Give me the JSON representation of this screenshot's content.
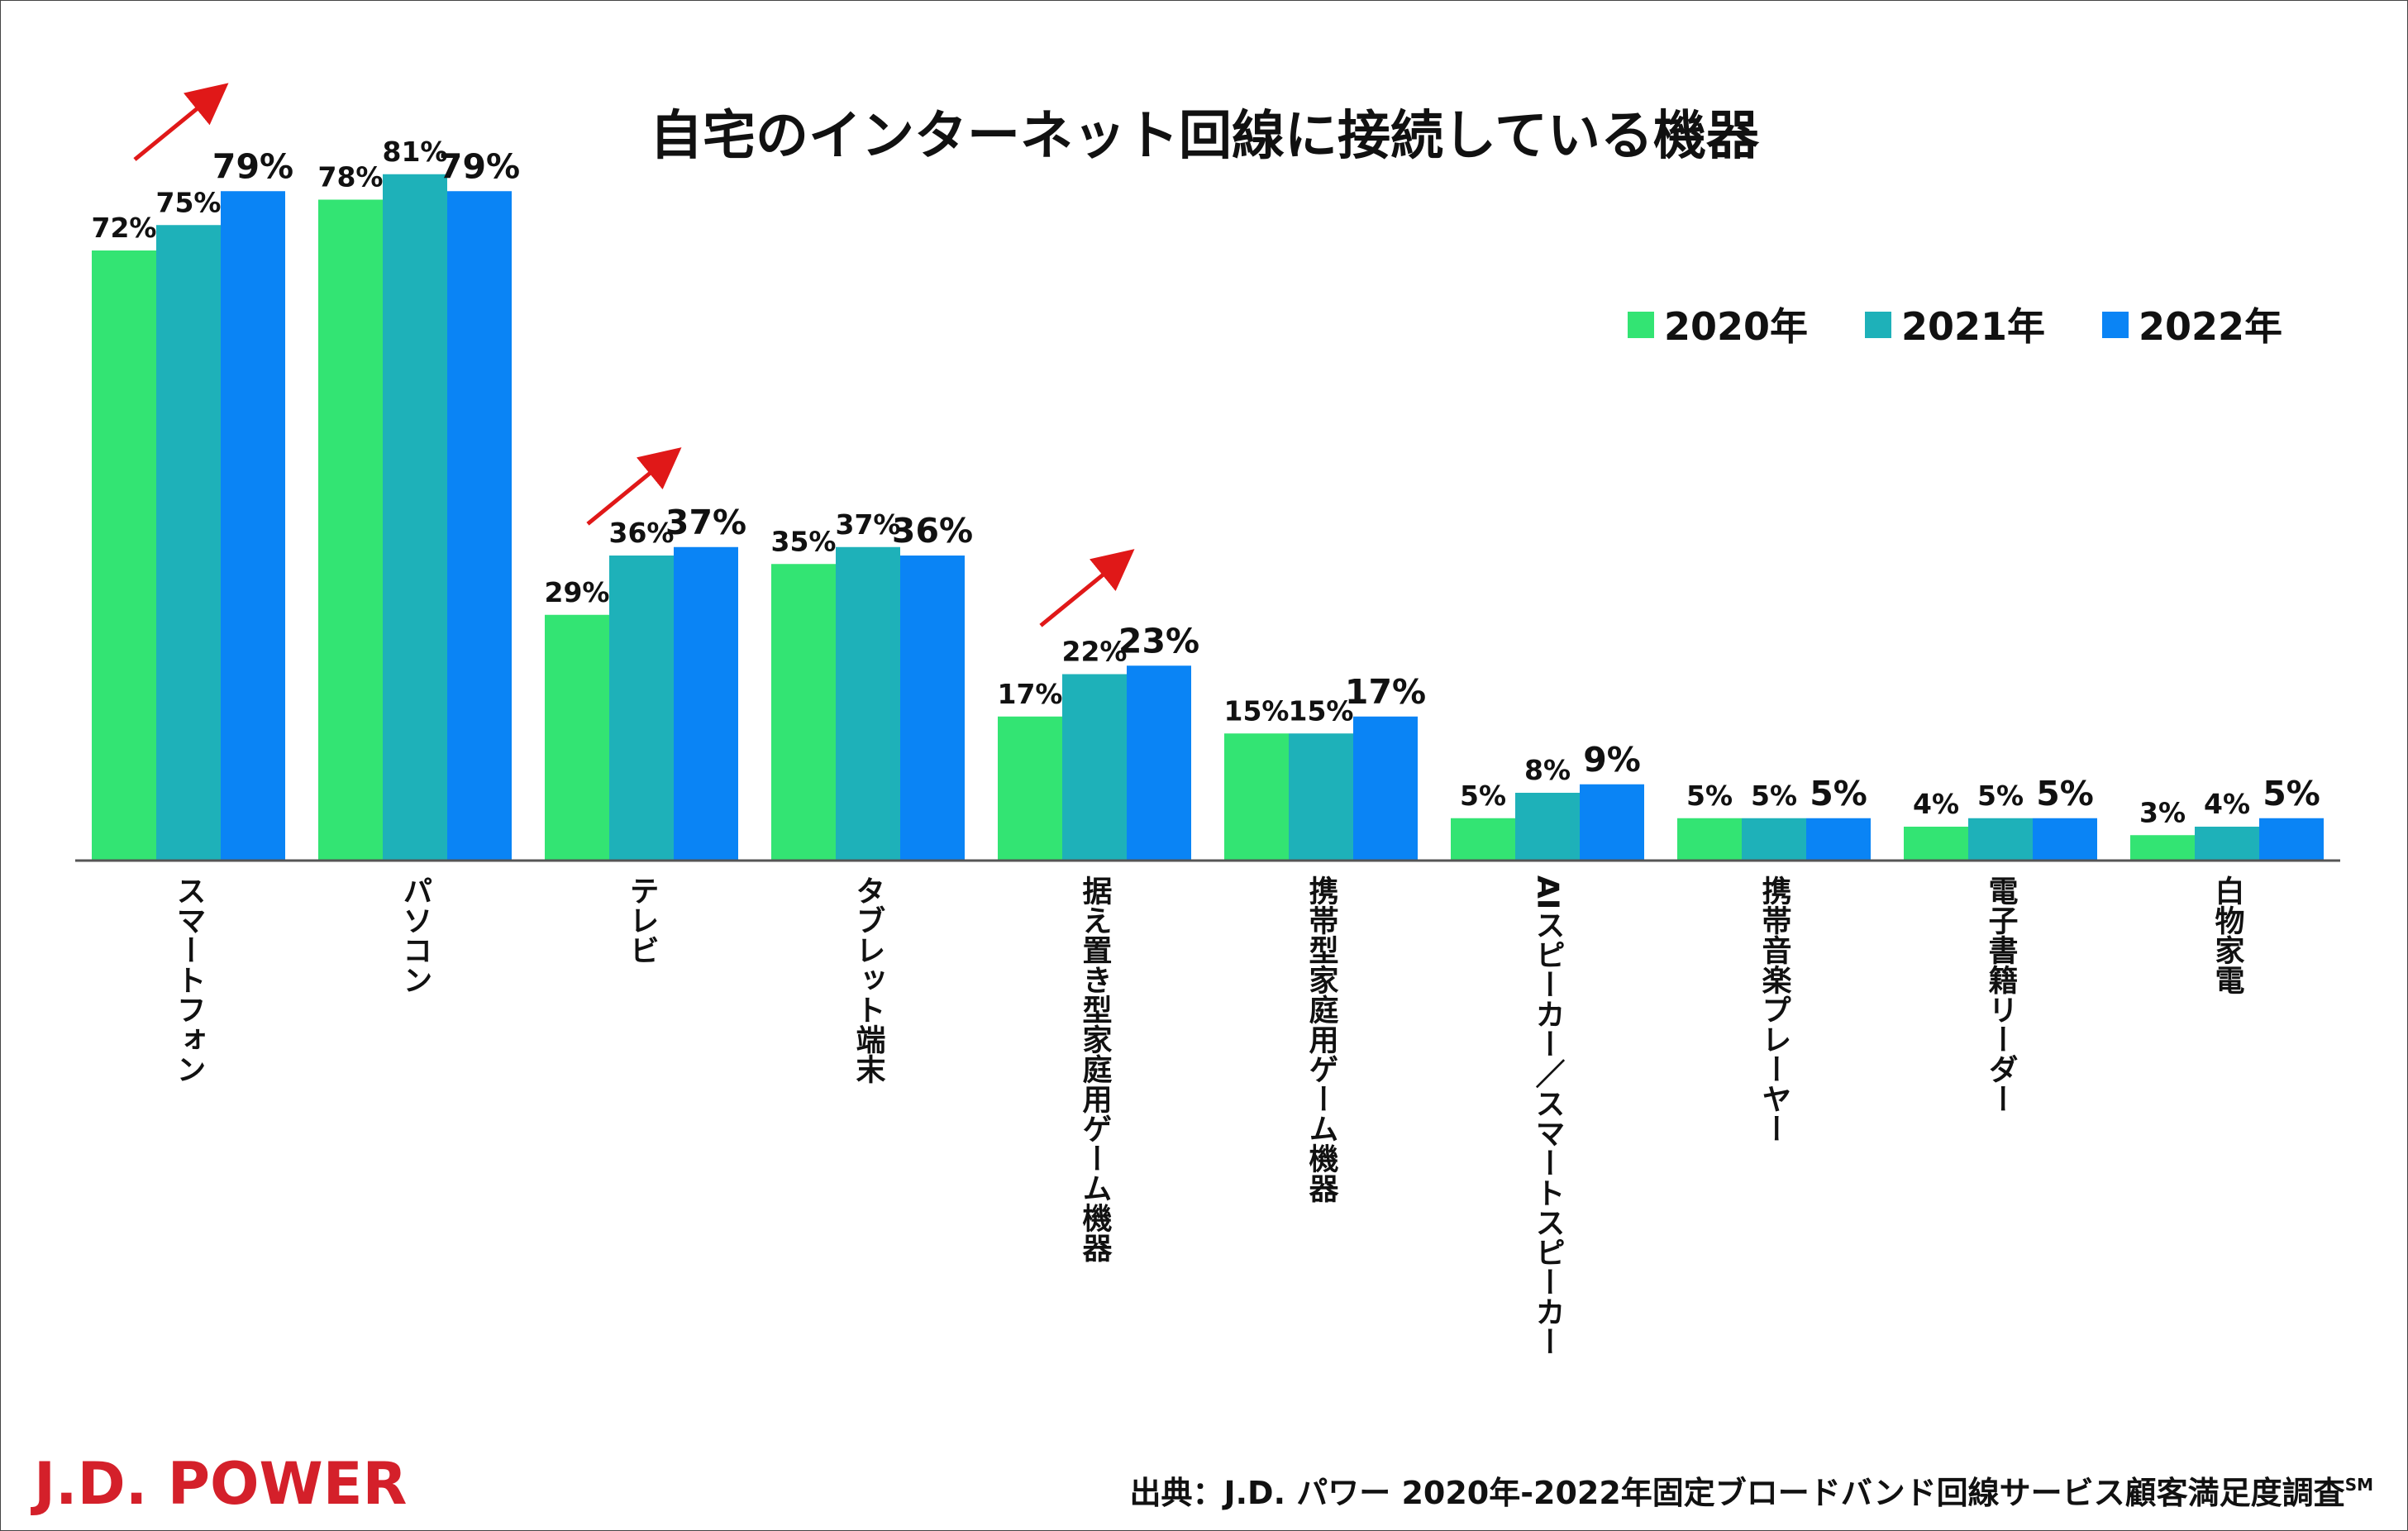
{
  "chart_data": {
    "type": "bar",
    "title": "自宅のインターネット回線に接続している機器",
    "categories": [
      "スマートフォン",
      "パソコン",
      "テレビ",
      "タブレット端末",
      "据え置き型家庭用ゲーム機器",
      "携帯型家庭用ゲーム機器",
      "AIスピーカー／スマートスピーカー",
      "携帯音楽プレーヤー",
      "電子書籍リーダー",
      "白物家電"
    ],
    "series": [
      {
        "name": "2020年",
        "color": "#33e473",
        "values": [
          72,
          78,
          29,
          35,
          17,
          15,
          5,
          5,
          4,
          3
        ]
      },
      {
        "name": "2021年",
        "color": "#1eb1b9",
        "values": [
          75,
          81,
          36,
          37,
          22,
          15,
          8,
          5,
          5,
          4
        ]
      },
      {
        "name": "2022年",
        "color": "#0a84f5",
        "values": [
          79,
          79,
          37,
          36,
          23,
          17,
          9,
          5,
          5,
          5
        ]
      }
    ],
    "value_suffix": "%",
    "ylim": [
      0,
      81
    ],
    "trend_arrows": [
      0,
      2,
      4
    ],
    "xlabel": "",
    "ylabel": "",
    "legend_position": "top-right",
    "grid": false
  },
  "branding": {
    "logo": "J.D. POWER",
    "source": "出典：J.D. パワー 2020年-2022年固定ブロードバンド回線サービス顧客満足度調査",
    "source_mark": "SM",
    "logo_color": "#d4202a",
    "arrow_color": "#e01818"
  }
}
